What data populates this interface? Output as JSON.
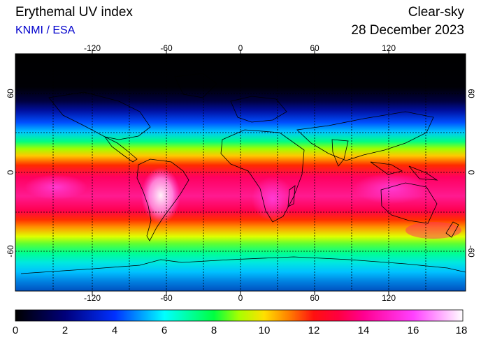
{
  "header": {
    "title": "Erythemal UV index",
    "source": "KNMI / ESA",
    "condition": "Clear-sky",
    "date": "28 December 2023"
  },
  "map": {
    "lon_ticks": [
      "-120",
      "-60",
      "0",
      "60",
      "120"
    ],
    "lat_ticks": [
      "60",
      "0",
      "-60"
    ]
  },
  "colorbar": {
    "labels": [
      "0",
      "2",
      "4",
      "6",
      "8",
      "10",
      "12",
      "14",
      "16",
      "18"
    ],
    "range": [
      0,
      18
    ]
  }
}
